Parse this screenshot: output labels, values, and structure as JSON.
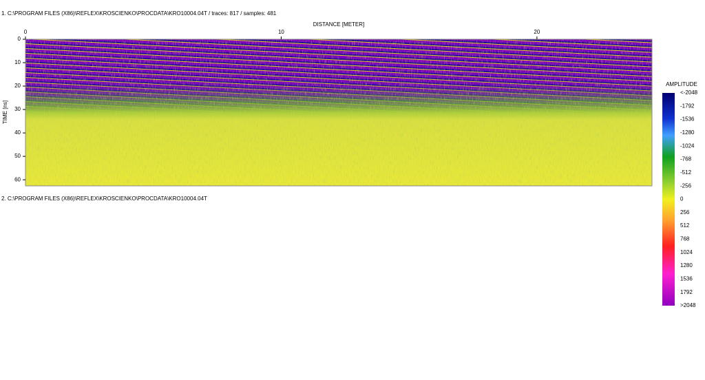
{
  "panels": [
    {
      "title": "1. C:\\PROGRAM FILES (X86)\\REFLEX\\KROSCIENKO\\PROCDATA\\KRO10004.04T / traces: 817 / samples: 481",
      "xlabel": "DISTANCE [METER]",
      "xlim": [
        0,
        24.5
      ],
      "xticks": [
        0,
        10,
        20
      ],
      "ylabel": "TIME [ns]",
      "ylim": [
        0,
        62.6
      ],
      "yticks": [
        0,
        10,
        20,
        30,
        40,
        50,
        60
      ]
    },
    {
      "title": "2. C:\\PROGRAM FILES (X86)\\REFLEX\\KROSCIENKO\\PROCDATA\\KRO10004.04T"
    }
  ],
  "colorbar": {
    "title": "AMPLITUDE",
    "labels": [
      "<-2048",
      -1792,
      -1536,
      -1280,
      -1024,
      -768,
      -512,
      -256,
      0,
      256,
      512,
      768,
      1024,
      1280,
      1536,
      1792,
      ">2048"
    ]
  }
}
